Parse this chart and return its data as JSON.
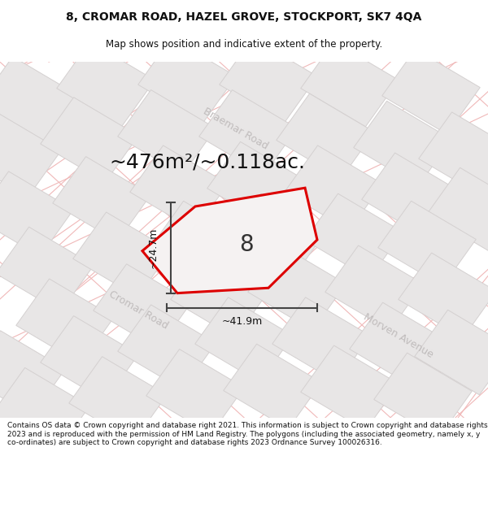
{
  "title_line1": "8, CROMAR ROAD, HAZEL GROVE, STOCKPORT, SK7 4QA",
  "title_line2": "Map shows position and indicative extent of the property.",
  "area_text": "~476m²/~0.118ac.",
  "property_number": "8",
  "dim_vertical": "~24.7m",
  "dim_horizontal": "~41.9m",
  "footer_text": "Contains OS data © Crown copyright and database right 2021. This information is subject to Crown copyright and database rights 2023 and is reproduced with the permission of HM Land Registry. The polygons (including the associated geometry, namely x, y co-ordinates) are subject to Crown copyright and database rights 2023 Ordnance Survey 100026316.",
  "map_bg": "#f9f7f7",
  "road_line_color": "#f0b8b8",
  "block_fill": "#e8e6e6",
  "block_edge": "#d4d0d0",
  "property_fill": "#f5f2f2",
  "property_stroke": "#dd0000",
  "dim_color": "#444444",
  "street_label_color": "#c0bcbc",
  "title_color": "#111111",
  "footer_color": "#111111",
  "title_fontsize": 10,
  "subtitle_fontsize": 8.5,
  "area_fontsize": 18,
  "dim_fontsize": 9,
  "street_fontsize": 9,
  "property_num_fontsize": 20,
  "footer_fontsize": 6.5
}
